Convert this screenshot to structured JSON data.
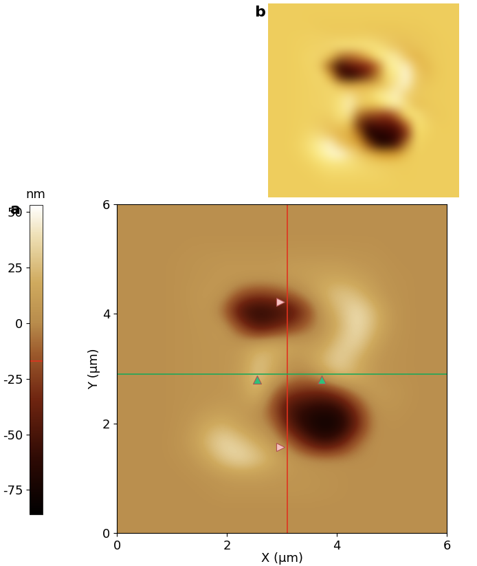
{
  "chart_data": [
    {
      "type": "heatmap",
      "title": "a",
      "x_label": "X (µm)",
      "y_label": "Y (µm)",
      "xlim": [
        0,
        6
      ],
      "ylim": [
        0,
        6
      ],
      "xticks": [
        0,
        2,
        4,
        6
      ],
      "yticks": [
        0,
        2,
        4,
        6
      ],
      "cursor_lines": {
        "x": 3.1,
        "y": 2.9,
        "x_color": "#e0321e",
        "y_color": "#1fa85a"
      },
      "markers": [
        {
          "x": 2.97,
          "y": 4.22,
          "marker": "triangle_right",
          "color": "#f4c0c0"
        },
        {
          "x": 2.97,
          "y": 1.57,
          "marker": "triangle_right",
          "color": "#f4c0c0"
        },
        {
          "x": 2.55,
          "y": 2.8,
          "marker": "triangle_up",
          "color": "#2fc07a"
        },
        {
          "x": 3.72,
          "y": 2.8,
          "marker": "triangle_up",
          "color": "#2fc07a"
        }
      ],
      "colorbar": {
        "label": "nm",
        "range": [
          -86,
          53
        ],
        "ticks": [
          50,
          25,
          0,
          -25,
          -50,
          -75
        ],
        "marker": -17
      },
      "cells": [
        [
          2,
          2,
          2,
          2,
          2,
          2,
          2,
          2,
          2,
          2,
          2,
          2,
          2,
          2,
          2,
          2,
          2,
          2,
          2,
          2
        ],
        [
          2,
          2,
          2,
          2,
          2,
          2,
          2,
          2,
          2,
          2,
          2,
          2,
          2,
          2,
          2,
          2,
          2,
          2,
          2,
          2
        ],
        [
          2,
          2,
          2,
          2,
          2,
          3,
          5,
          5,
          5,
          5,
          5,
          5,
          4,
          3,
          2,
          2,
          2,
          2,
          2,
          2
        ],
        [
          2,
          2,
          2,
          2,
          3,
          5,
          8,
          10,
          10,
          8,
          6,
          5,
          4,
          3,
          2,
          2,
          2,
          2,
          2,
          2
        ],
        [
          2,
          2,
          2,
          3,
          6,
          15,
          30,
          38,
          30,
          18,
          8,
          4,
          2,
          2,
          2,
          2,
          2,
          2,
          2,
          2
        ],
        [
          2,
          2,
          2,
          4,
          10,
          25,
          38,
          30,
          18,
          8,
          -10,
          -40,
          -60,
          -45,
          -10,
          3,
          2,
          2,
          2,
          2
        ],
        [
          2,
          2,
          2,
          3,
          8,
          18,
          22,
          12,
          5,
          -5,
          -45,
          -70,
          -80,
          -75,
          -40,
          0,
          3,
          2,
          2,
          2
        ],
        [
          2,
          2,
          2,
          3,
          5,
          8,
          10,
          8,
          5,
          -20,
          -55,
          -65,
          -70,
          -65,
          -30,
          2,
          5,
          3,
          2,
          2
        ],
        [
          2,
          2,
          2,
          3,
          4,
          5,
          6,
          8,
          25,
          -10,
          -30,
          -35,
          -40,
          -25,
          0,
          10,
          8,
          4,
          2,
          2
        ],
        [
          2,
          2,
          2,
          3,
          4,
          5,
          6,
          10,
          30,
          15,
          0,
          -5,
          10,
          25,
          20,
          8,
          4,
          3,
          2,
          2
        ],
        [
          2,
          2,
          2,
          3,
          4,
          5,
          6,
          8,
          28,
          20,
          5,
          10,
          25,
          35,
          20,
          8,
          4,
          3,
          2,
          2
        ],
        [
          2,
          2,
          2,
          3,
          4,
          5,
          6,
          8,
          15,
          20,
          15,
          10,
          12,
          30,
          35,
          15,
          5,
          3,
          2,
          2
        ],
        [
          2,
          2,
          2,
          3,
          4,
          6,
          8,
          -20,
          -50,
          -40,
          -25,
          -10,
          5,
          20,
          40,
          25,
          8,
          3,
          2,
          2
        ],
        [
          2,
          2,
          2,
          3,
          4,
          8,
          -10,
          -55,
          -65,
          -60,
          -50,
          -25,
          10,
          25,
          40,
          25,
          8,
          3,
          2,
          2
        ],
        [
          2,
          2,
          2,
          3,
          5,
          8,
          5,
          -15,
          -25,
          -20,
          -10,
          5,
          20,
          30,
          25,
          12,
          5,
          3,
          2,
          2
        ],
        [
          2,
          2,
          2,
          3,
          4,
          6,
          8,
          8,
          8,
          8,
          10,
          12,
          15,
          15,
          12,
          8,
          4,
          3,
          2,
          2
        ],
        [
          2,
          2,
          2,
          3,
          4,
          5,
          6,
          6,
          6,
          6,
          8,
          8,
          8,
          8,
          6,
          5,
          3,
          2,
          2,
          2
        ],
        [
          2,
          2,
          2,
          2,
          3,
          3,
          3,
          3,
          3,
          3,
          3,
          3,
          3,
          3,
          3,
          3,
          2,
          2,
          2,
          2
        ],
        [
          2,
          2,
          2,
          2,
          2,
          2,
          2,
          2,
          2,
          2,
          2,
          2,
          2,
          2,
          2,
          2,
          2,
          2,
          2,
          2
        ],
        [
          2,
          2,
          2,
          2,
          2,
          2,
          2,
          2,
          2,
          2,
          2,
          2,
          2,
          2,
          2,
          2,
          2,
          2,
          2,
          2
        ]
      ]
    },
    {
      "type": "heatmap",
      "title": "b",
      "tick_labels": false
    }
  ]
}
